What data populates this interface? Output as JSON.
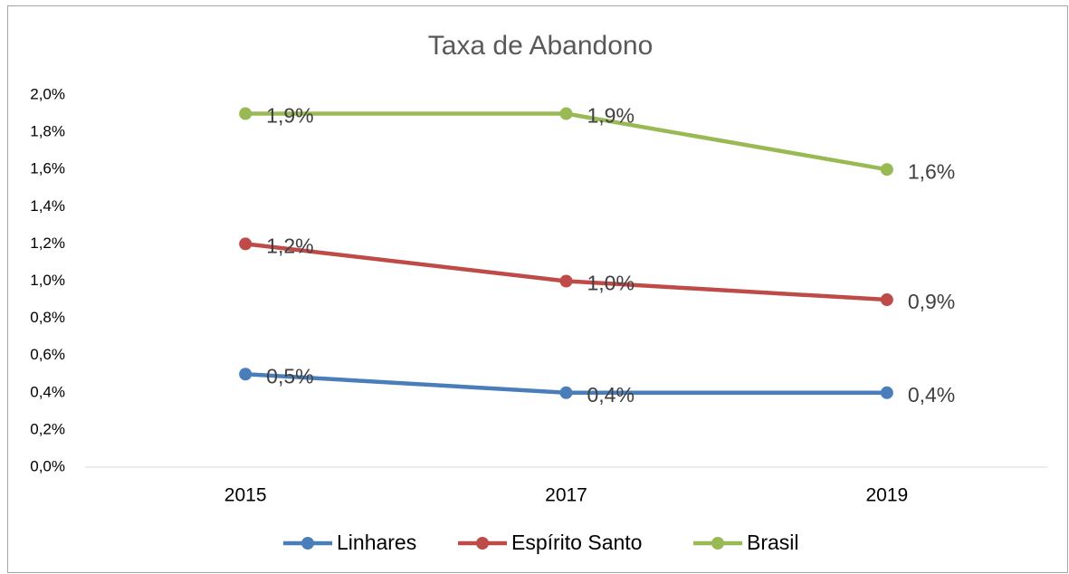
{
  "chart_data": {
    "type": "line",
    "title": "Taxa de Abandono",
    "categories": [
      "2015",
      "2017",
      "2019"
    ],
    "series": [
      {
        "name": "Linhares",
        "color": "#4a7ebb",
        "values": [
          0.5,
          0.4,
          0.4
        ],
        "value_labels": [
          "0,5%",
          "0,4%",
          "0,4%"
        ]
      },
      {
        "name": "Espírito Santo",
        "color": "#be4b48",
        "values": [
          1.2,
          1.0,
          0.9
        ],
        "value_labels": [
          "1,2%",
          "1,0%",
          "0,9%"
        ]
      },
      {
        "name": "Brasil",
        "color": "#98b954",
        "values": [
          1.9,
          1.9,
          1.6
        ],
        "value_labels": [
          "1,9%",
          "1,9%",
          "1,6%"
        ]
      }
    ],
    "ylim": [
      0,
      2.0
    ],
    "yticks": [
      {
        "value": 0,
        "label": "0,0%"
      },
      {
        "value": 0.2,
        "label": "0,2%"
      },
      {
        "value": 0.4,
        "label": "0,4%"
      },
      {
        "value": 0.6,
        "label": "0,6%"
      },
      {
        "value": 0.8,
        "label": "0,8%"
      },
      {
        "value": 1.0,
        "label": "1,0%"
      },
      {
        "value": 1.2,
        "label": "1,2%"
      },
      {
        "value": 1.4,
        "label": "1,4%"
      },
      {
        "value": 1.6,
        "label": "1,6%"
      },
      {
        "value": 1.8,
        "label": "1,8%"
      },
      {
        "value": 2.0,
        "label": "2,0%"
      }
    ],
    "grid": false,
    "legend": "bottom"
  }
}
